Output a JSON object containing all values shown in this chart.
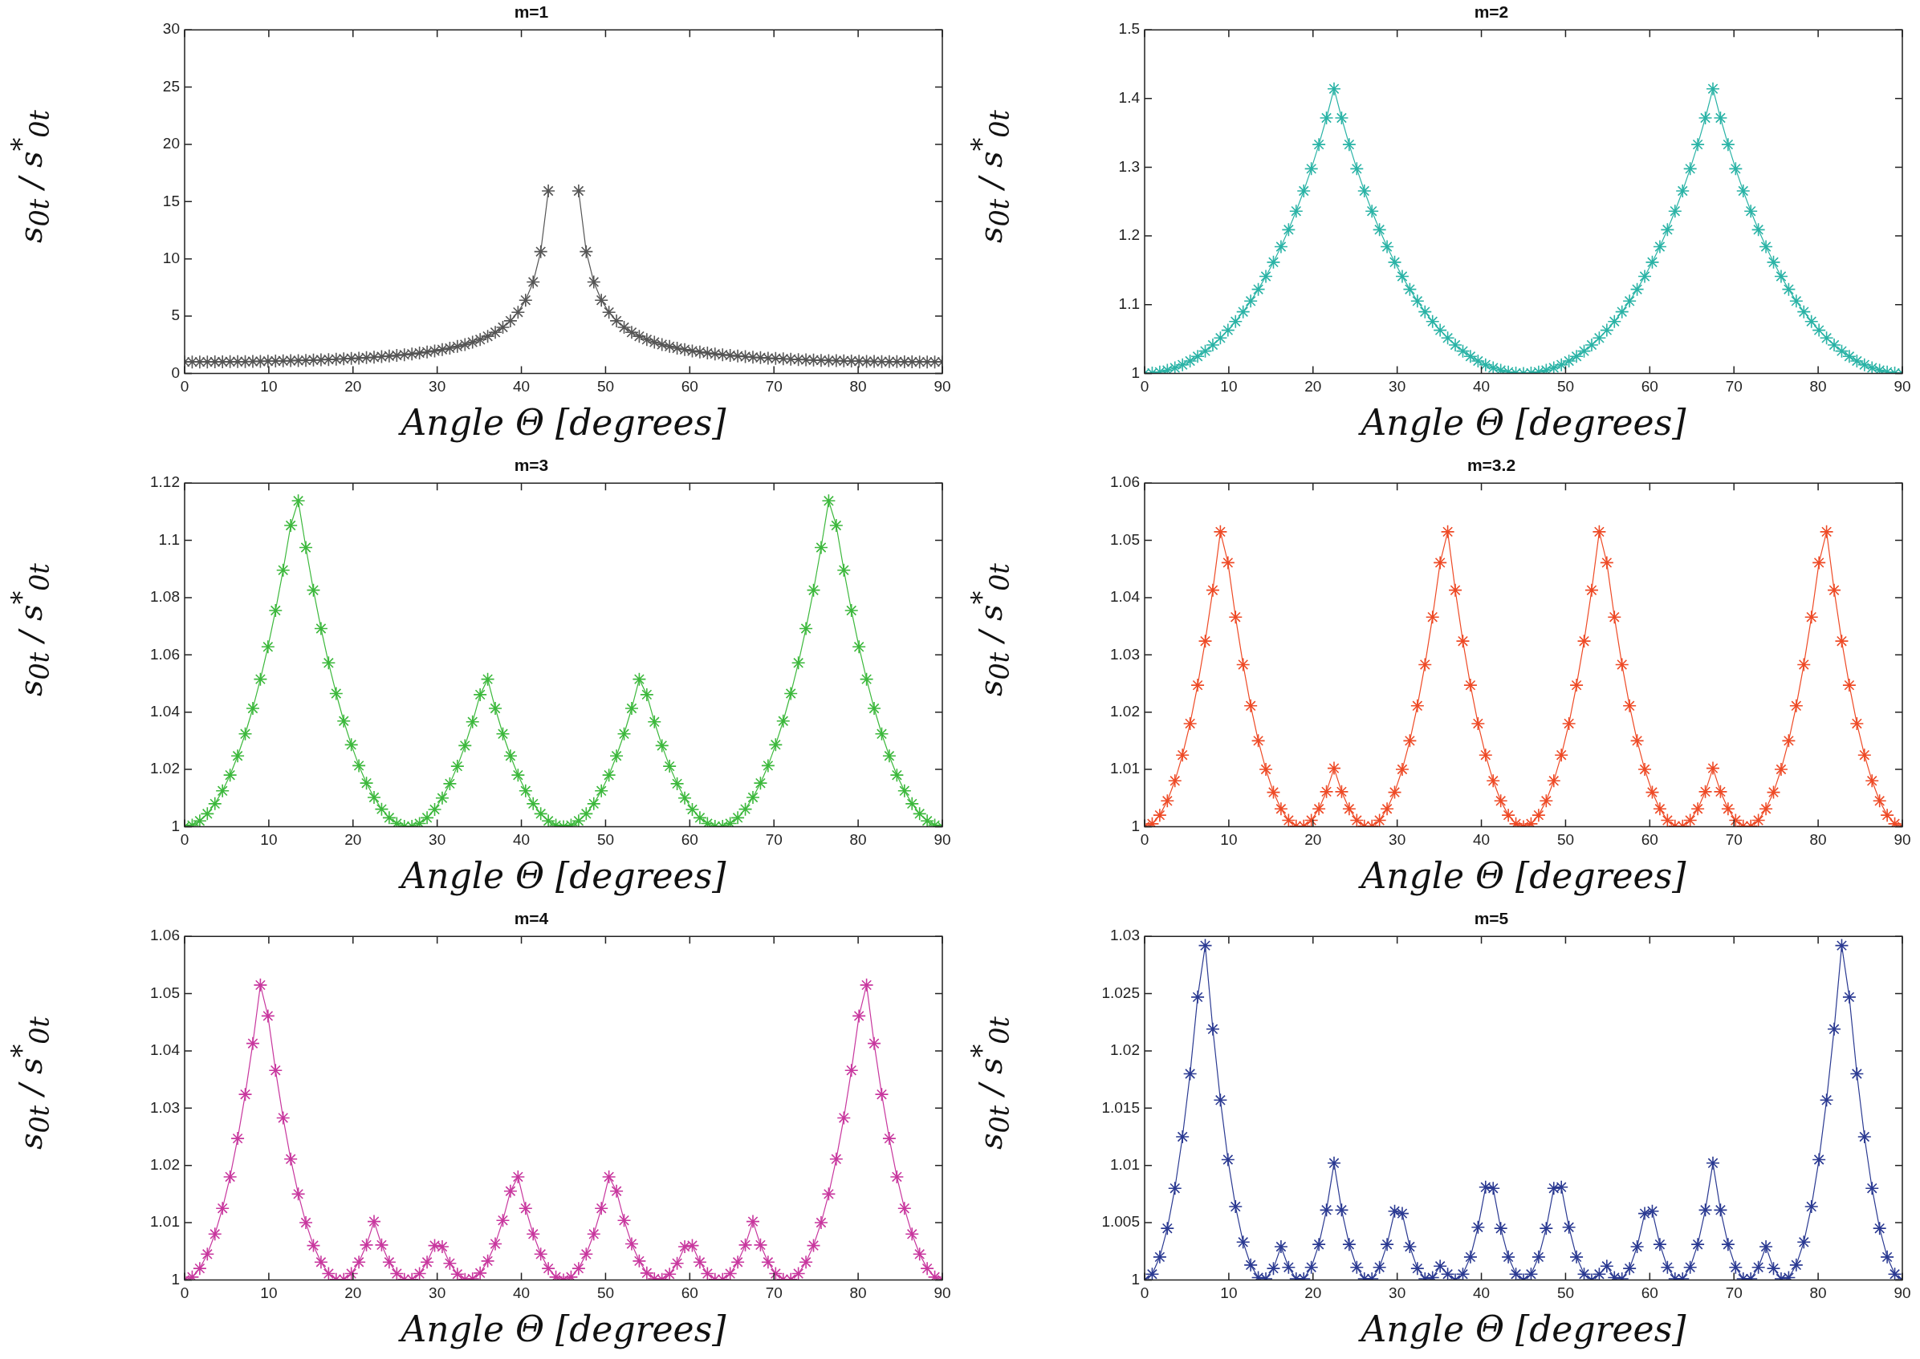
{
  "chart_data": [
    {
      "type": "line",
      "title": "m=1",
      "xlabel": "Angle Θ [degrees]",
      "ylabel": "s$_{0t}$ / s$^{*}$$_{0t}$",
      "color": "#555555",
      "marker": "cross",
      "xlim": [
        0,
        90
      ],
      "ylim": [
        0,
        30
      ],
      "xticks": [
        0,
        10,
        20,
        30,
        40,
        50,
        60,
        70,
        80,
        90
      ],
      "yticks": [
        0,
        5,
        10,
        15,
        20,
        25,
        30
      ],
      "x": [
        0,
        0.9,
        1.8,
        2.7,
        3.6,
        4.5,
        5.4,
        6.3,
        7.2,
        8.1,
        9,
        9.9,
        10.8,
        11.7,
        12.6,
        13.5,
        14.4,
        15.3,
        16.2,
        17.1,
        18,
        18.9,
        19.8,
        20.7,
        21.6,
        22.5,
        23.4,
        24.3,
        25.2,
        26.1,
        27,
        27.9,
        28.8,
        29.7,
        30.6,
        31.5,
        32.4,
        33.3,
        34.2,
        35.1,
        36,
        36.9,
        37.8,
        38.7,
        39.6,
        40.5,
        41.4,
        42.3,
        43.2,
        44.1,
        45,
        45.9,
        46.8,
        47.7,
        48.6,
        49.5,
        50.4,
        51.3,
        52.2,
        53.1,
        54,
        54.9,
        55.8,
        56.7,
        57.6,
        58.5,
        59.4,
        60.3,
        61.2,
        62.1,
        63,
        63.9,
        64.8,
        65.7,
        66.6,
        67.5,
        68.4,
        69.3,
        70.2,
        71.1,
        72,
        72.9,
        73.8,
        74.7,
        75.6,
        76.5,
        77.4,
        78.3,
        79.2,
        80.1,
        81,
        81.9,
        82.8,
        83.7,
        84.6,
        85.5,
        86.4,
        87.3,
        88.2,
        89.1,
        90
      ],
      "values": [
        1,
        1,
        1,
        1,
        1.01,
        1.01,
        1.02,
        1.02,
        1.03,
        1.04,
        1.05,
        1.06,
        1.08,
        1.09,
        1.11,
        1.12,
        1.14,
        1.16,
        1.18,
        1.21,
        1.24,
        1.27,
        1.3,
        1.33,
        1.37,
        1.41,
        1.46,
        1.51,
        1.57,
        1.63,
        1.7,
        1.78,
        1.87,
        1.96,
        2.08,
        2.2,
        2.35,
        2.52,
        2.72,
        2.95,
        3.24,
        3.58,
        4.02,
        4.59,
        5.34,
        6.39,
        7.98,
        10.63,
        15.93,
        null,
        null,
        null,
        15.93,
        10.63,
        7.98,
        6.39,
        5.34,
        4.59,
        4.02,
        3.58,
        3.24,
        2.95,
        2.72,
        2.52,
        2.35,
        2.2,
        2.08,
        1.96,
        1.87,
        1.78,
        1.7,
        1.63,
        1.57,
        1.51,
        1.46,
        1.41,
        1.37,
        1.33,
        1.3,
        1.27,
        1.24,
        1.21,
        1.18,
        1.16,
        1.14,
        1.12,
        1.11,
        1.09,
        1.08,
        1.06,
        1.05,
        1.04,
        1.03,
        1.02,
        1.02,
        1.01,
        1.01,
        1,
        1,
        1,
        1
      ]
    },
    {
      "type": "line",
      "title": "m=2",
      "xlabel": "Angle Θ [degrees]",
      "ylabel": "s$_{0t}$ / s$^{*}$$_{0t}$",
      "color": "#2ab3a6",
      "marker": "cross",
      "xlim": [
        0,
        90
      ],
      "ylim": [
        1,
        1.5
      ],
      "xticks": [
        0,
        10,
        20,
        30,
        40,
        50,
        60,
        70,
        80,
        90
      ],
      "yticks": [
        1,
        1.1,
        1.2,
        1.3,
        1.4,
        1.5
      ],
      "x": [
        0,
        0.9,
        1.8,
        2.7,
        3.6,
        4.5,
        5.4,
        6.3,
        7.2,
        8.1,
        9,
        9.9,
        10.8,
        11.7,
        12.6,
        13.5,
        14.4,
        15.3,
        16.2,
        17.1,
        18,
        18.9,
        19.8,
        20.7,
        21.6,
        22.5,
        23.4,
        24.3,
        25.2,
        26.1,
        27,
        27.9,
        28.8,
        29.7,
        30.6,
        31.5,
        32.4,
        33.3,
        34.2,
        35.1,
        36,
        36.9,
        37.8,
        38.7,
        39.6,
        40.5,
        41.4,
        42.3,
        43.2,
        44.1,
        45,
        45.9,
        46.8,
        47.7,
        48.6,
        49.5,
        50.4,
        51.3,
        52.2,
        53.1,
        54,
        54.9,
        55.8,
        56.7,
        57.6,
        58.5,
        59.4,
        60.3,
        61.2,
        62.1,
        63,
        63.9,
        64.8,
        65.7,
        66.6,
        67.5,
        68.4,
        69.3,
        70.2,
        71.1,
        72,
        72.9,
        73.8,
        74.7,
        75.6,
        76.5,
        77.4,
        78.3,
        79.2,
        80.1,
        81,
        81.9,
        82.8,
        83.7,
        84.6,
        85.5,
        86.4,
        87.3,
        88.2,
        89.1,
        90
      ],
      "values": [
        1,
        1.0005,
        1.002,
        1.0045,
        1.008,
        1.0125,
        1.018,
        1.0247,
        1.0324,
        1.0413,
        1.0515,
        1.0628,
        1.0755,
        1.0896,
        1.1052,
        1.1223,
        1.1412,
        1.1618,
        1.1844,
        1.2091,
        1.2361,
        1.2655,
        1.2978,
        1.3331,
        1.3718,
        1.4142,
        1.3718,
        1.3331,
        1.2978,
        1.2655,
        1.2361,
        1.2091,
        1.1844,
        1.1618,
        1.1412,
        1.1223,
        1.1052,
        1.0896,
        1.0755,
        1.0628,
        1.0515,
        1.0413,
        1.0324,
        1.0247,
        1.018,
        1.0125,
        1.008,
        1.0045,
        1.002,
        1.0005,
        1,
        1.0005,
        1.002,
        1.0045,
        1.008,
        1.0125,
        1.018,
        1.0247,
        1.0324,
        1.0413,
        1.0515,
        1.0628,
        1.0755,
        1.0896,
        1.1052,
        1.1223,
        1.1412,
        1.1618,
        1.1844,
        1.2091,
        1.2361,
        1.2655,
        1.2978,
        1.3331,
        1.3718,
        1.4142,
        1.3718,
        1.3331,
        1.2978,
        1.2655,
        1.2361,
        1.2091,
        1.1844,
        1.1618,
        1.1412,
        1.1223,
        1.1052,
        1.0896,
        1.0755,
        1.0628,
        1.0515,
        1.0413,
        1.0324,
        1.0247,
        1.018,
        1.0125,
        1.008,
        1.0045,
        1.002,
        1.0005,
        1
      ]
    },
    {
      "type": "line",
      "title": "m=3",
      "xlabel": "Angle Θ [degrees]",
      "ylabel": "s$_{0t}$ / s$^{*}$$_{0t}$",
      "color": "#3cb83c",
      "marker": "cross",
      "xlim": [
        0,
        90
      ],
      "ylim": [
        1,
        1.12
      ],
      "xticks": [
        0,
        10,
        20,
        30,
        40,
        50,
        60,
        70,
        80,
        90
      ],
      "yticks": [
        1,
        1.02,
        1.04,
        1.06,
        1.08,
        1.1,
        1.12
      ],
      "x": [
        0,
        0.9,
        1.8,
        2.7,
        3.6,
        4.5,
        5.4,
        6.3,
        7.2,
        8.1,
        9,
        9.9,
        10.8,
        11.7,
        12.6,
        13.5,
        14.4,
        15.3,
        16.2,
        17.1,
        18,
        18.9,
        19.8,
        20.7,
        21.6,
        22.5,
        23.4,
        24.3,
        25.2,
        26.1,
        27,
        27.9,
        28.8,
        29.7,
        30.6,
        31.5,
        32.4,
        33.3,
        34.2,
        35.1,
        36,
        36.9,
        37.8,
        38.7,
        39.6,
        40.5,
        41.4,
        42.3,
        43.2,
        44.1,
        45,
        45.9,
        46.8,
        47.7,
        48.6,
        49.5,
        50.4,
        51.3,
        52.2,
        53.1,
        54,
        54.9,
        55.8,
        56.7,
        57.6,
        58.5,
        59.4,
        60.3,
        61.2,
        62.1,
        63,
        63.9,
        64.8,
        65.7,
        66.6,
        67.5,
        68.4,
        69.3,
        70.2,
        71.1,
        72,
        72.9,
        73.8,
        74.7,
        75.6,
        76.5,
        77.4,
        78.3,
        79.2,
        80.1,
        81,
        81.9,
        82.8,
        83.7,
        84.6,
        85.5,
        86.4,
        87.3,
        88.2,
        89.1,
        90
      ],
      "values": [
        1,
        1.0005,
        1.002,
        1.0045,
        1.008,
        1.0125,
        1.018,
        1.0247,
        1.0324,
        1.0413,
        1.0515,
        1.0628,
        1.0755,
        1.0896,
        1.1052,
        1.1138,
        1.0975,
        1.0826,
        1.0692,
        1.0572,
        1.0465,
        1.0369,
        1.0286,
        1.0213,
        1.0152,
        1.0102,
        1.0061,
        1.0031,
        1.0011,
        1.0001,
        1.0001,
        1.0011,
        1.0031,
        1.006,
        1.01,
        1.015,
        1.0211,
        1.0283,
        1.0366,
        1.0461,
        1.0515,
        1.0413,
        1.0324,
        1.0247,
        1.018,
        1.0125,
        1.008,
        1.0045,
        1.002,
        1.0005,
        1,
        1.0005,
        1.002,
        1.0045,
        1.008,
        1.0125,
        1.018,
        1.0247,
        1.0324,
        1.0413,
        1.0515,
        1.0461,
        1.0366,
        1.0283,
        1.0211,
        1.015,
        1.01,
        1.006,
        1.0031,
        1.0011,
        1.0001,
        1.0001,
        1.0011,
        1.0031,
        1.0061,
        1.0102,
        1.0152,
        1.0213,
        1.0286,
        1.0369,
        1.0465,
        1.0572,
        1.0692,
        1.0826,
        1.0975,
        1.1138,
        1.1052,
        1.0896,
        1.0755,
        1.0628,
        1.0515,
        1.0413,
        1.0324,
        1.0247,
        1.018,
        1.0125,
        1.008,
        1.0045,
        1.002,
        1.0005,
        1
      ]
    },
    {
      "type": "line",
      "title": "m=3.2",
      "xlabel": "Angle Θ [degrees]",
      "ylabel": "s$_{0t}$ / s$^{*}$$_{0t}$",
      "color": "#ee4a26",
      "marker": "cross",
      "xlim": [
        0,
        90
      ],
      "ylim": [
        1,
        1.06
      ],
      "xticks": [
        0,
        10,
        20,
        30,
        40,
        50,
        60,
        70,
        80,
        90
      ],
      "yticks": [
        1,
        1.01,
        1.02,
        1.03,
        1.04,
        1.05,
        1.06
      ],
      "x": [
        0,
        0.9,
        1.8,
        2.7,
        3.6,
        4.5,
        5.4,
        6.3,
        7.2,
        8.1,
        9,
        9.9,
        10.8,
        11.7,
        12.6,
        13.5,
        14.4,
        15.3,
        16.2,
        17.1,
        18,
        18.9,
        19.8,
        20.7,
        21.6,
        22.5,
        23.4,
        24.3,
        25.2,
        26.1,
        27,
        27.9,
        28.8,
        29.7,
        30.6,
        31.5,
        32.4,
        33.3,
        34.2,
        35.1,
        36,
        36.9,
        37.8,
        38.7,
        39.6,
        40.5,
        41.4,
        42.3,
        43.2,
        44.1,
        45,
        45.9,
        46.8,
        47.7,
        48.6,
        49.5,
        50.4,
        51.3,
        52.2,
        53.1,
        54,
        54.9,
        55.8,
        56.7,
        57.6,
        58.5,
        59.4,
        60.3,
        61.2,
        62.1,
        63,
        63.9,
        64.8,
        65.7,
        66.6,
        67.5,
        68.4,
        69.3,
        70.2,
        71.1,
        72,
        72.9,
        73.8,
        74.7,
        75.6,
        76.5,
        77.4,
        78.3,
        79.2,
        80.1,
        81,
        81.9,
        82.8,
        83.7,
        84.6,
        85.5,
        86.4,
        87.3,
        88.2,
        89.1,
        90
      ],
      "values": [
        1,
        1.0005,
        1.002,
        1.0045,
        1.008,
        1.0125,
        1.018,
        1.0247,
        1.0324,
        1.0413,
        1.0515,
        1.0461,
        1.0366,
        1.0283,
        1.0211,
        1.015,
        1.01,
        1.006,
        1.0031,
        1.0011,
        1.0001,
        1.0001,
        1.0011,
        1.0031,
        1.0061,
        1.0102,
        1.0061,
        1.0031,
        1.0011,
        1.0001,
        1.0001,
        1.0011,
        1.0031,
        1.006,
        1.01,
        1.015,
        1.0211,
        1.0283,
        1.0366,
        1.0461,
        1.0515,
        1.0413,
        1.0324,
        1.0247,
        1.018,
        1.0125,
        1.008,
        1.0045,
        1.002,
        1.0005,
        1,
        1.0005,
        1.002,
        1.0045,
        1.008,
        1.0125,
        1.018,
        1.0247,
        1.0324,
        1.0413,
        1.0515,
        1.0461,
        1.0366,
        1.0283,
        1.0211,
        1.015,
        1.01,
        1.006,
        1.0031,
        1.0011,
        1.0001,
        1.0001,
        1.0011,
        1.0031,
        1.0061,
        1.0102,
        1.0061,
        1.0031,
        1.0011,
        1.0001,
        1.0001,
        1.0011,
        1.0031,
        1.006,
        1.01,
        1.015,
        1.0211,
        1.0283,
        1.0366,
        1.0461,
        1.0515,
        1.0413,
        1.0324,
        1.0247,
        1.018,
        1.0125,
        1.008,
        1.0045,
        1.002,
        1.0005,
        1
      ]
    },
    {
      "type": "line",
      "title": "m=4",
      "xlabel": "Angle Θ [degrees]",
      "ylabel": "s$_{0t}$ / s$^{*}$$_{0t}$",
      "color": "#c8379e",
      "marker": "cross",
      "xlim": [
        0,
        90
      ],
      "ylim": [
        1,
        1.06
      ],
      "xticks": [
        0,
        10,
        20,
        30,
        40,
        50,
        60,
        70,
        80,
        90
      ],
      "yticks": [
        1,
        1.01,
        1.02,
        1.03,
        1.04,
        1.05,
        1.06
      ],
      "x": [
        0,
        0.9,
        1.8,
        2.7,
        3.6,
        4.5,
        5.4,
        6.3,
        7.2,
        8.1,
        9,
        9.9,
        10.8,
        11.7,
        12.6,
        13.5,
        14.4,
        15.3,
        16.2,
        17.1,
        18,
        18.9,
        19.8,
        20.7,
        21.6,
        22.5,
        23.4,
        24.3,
        25.2,
        26.1,
        27,
        27.9,
        28.8,
        29.7,
        30.6,
        31.5,
        32.4,
        33.3,
        34.2,
        35.1,
        36,
        36.9,
        37.8,
        38.7,
        39.6,
        40.5,
        41.4,
        42.3,
        43.2,
        44.1,
        45,
        45.9,
        46.8,
        47.7,
        48.6,
        49.5,
        50.4,
        51.3,
        52.2,
        53.1,
        54,
        54.9,
        55.8,
        56.7,
        57.6,
        58.5,
        59.4,
        60.3,
        61.2,
        62.1,
        63,
        63.9,
        64.8,
        65.7,
        66.6,
        67.5,
        68.4,
        69.3,
        70.2,
        71.1,
        72,
        72.9,
        73.8,
        74.7,
        75.6,
        76.5,
        77.4,
        78.3,
        79.2,
        80.1,
        81,
        81.9,
        82.8,
        83.7,
        84.6,
        85.5,
        86.4,
        87.3,
        88.2,
        89.1,
        90
      ],
      "values": [
        1,
        1.0005,
        1.002,
        1.0045,
        1.008,
        1.0125,
        1.018,
        1.0247,
        1.0324,
        1.0413,
        1.0515,
        1.0461,
        1.0366,
        1.0283,
        1.0211,
        1.015,
        1.01,
        1.006,
        1.0031,
        1.0011,
        1.0001,
        1.0001,
        1.0011,
        1.0031,
        1.0061,
        1.0102,
        1.0061,
        1.0031,
        1.0011,
        1.0001,
        1.0001,
        1.0011,
        1.0031,
        1.006,
        1.0058,
        1.0029,
        1.001,
        1.0001,
        1.0002,
        1.0012,
        1.0033,
        1.0063,
        1.0104,
        1.0155,
        1.018,
        1.0125,
        1.008,
        1.0045,
        1.002,
        1.0005,
        1,
        1.0005,
        1.002,
        1.0045,
        1.008,
        1.0125,
        1.018,
        1.0155,
        1.0104,
        1.0063,
        1.0033,
        1.0012,
        1.0002,
        1.0001,
        1.001,
        1.0029,
        1.0058,
        1.006,
        1.0031,
        1.0011,
        1.0001,
        1.0001,
        1.0011,
        1.0031,
        1.0061,
        1.0102,
        1.0061,
        1.0031,
        1.0011,
        1.0001,
        1.0001,
        1.0011,
        1.0031,
        1.006,
        1.01,
        1.015,
        1.0211,
        1.0283,
        1.0366,
        1.0461,
        1.0515,
        1.0413,
        1.0324,
        1.0247,
        1.018,
        1.0125,
        1.008,
        1.0045,
        1.002,
        1.0005,
        1
      ]
    },
    {
      "type": "line",
      "title": "m=5",
      "xlabel": "Angle Θ [degrees]",
      "ylabel": "s$_{0t}$ / s$^{*}$$_{0t}$",
      "color": "#2b3a92",
      "marker": "cross",
      "xlim": [
        0,
        90
      ],
      "ylim": [
        1,
        1.03
      ],
      "xticks": [
        0,
        10,
        20,
        30,
        40,
        50,
        60,
        70,
        80,
        90
      ],
      "yticks": [
        1,
        1.005,
        1.01,
        1.015,
        1.02,
        1.025,
        1.03
      ],
      "x": [
        0,
        0.9,
        1.8,
        2.7,
        3.6,
        4.5,
        5.4,
        6.3,
        7.2,
        8.1,
        9,
        9.9,
        10.8,
        11.7,
        12.6,
        13.5,
        14.4,
        15.3,
        16.2,
        17.1,
        18,
        18.9,
        19.8,
        20.7,
        21.6,
        22.5,
        23.4,
        24.3,
        25.2,
        26.1,
        27,
        27.9,
        28.8,
        29.7,
        30.6,
        31.5,
        32.4,
        33.3,
        34.2,
        35.1,
        36,
        36.9,
        37.8,
        38.7,
        39.6,
        40.5,
        41.4,
        42.3,
        43.2,
        44.1,
        45,
        45.9,
        46.8,
        47.7,
        48.6,
        49.5,
        50.4,
        51.3,
        52.2,
        53.1,
        54,
        54.9,
        55.8,
        56.7,
        57.6,
        58.5,
        59.4,
        60.3,
        61.2,
        62.1,
        63,
        63.9,
        64.8,
        65.7,
        66.6,
        67.5,
        68.4,
        69.3,
        70.2,
        71.1,
        72,
        72.9,
        73.8,
        74.7,
        75.6,
        76.5,
        77.4,
        78.3,
        79.2,
        80.1,
        81,
        81.9,
        82.8,
        83.7,
        84.6,
        85.5,
        86.4,
        87.3,
        88.2,
        89.1,
        90
      ],
      "values": [
        1,
        1.0005,
        1.002,
        1.0045,
        1.008,
        1.0125,
        1.018,
        1.0247,
        1.0292,
        1.0219,
        1.0157,
        1.0105,
        1.0064,
        1.0033,
        1.0013,
        1.0002,
        1.0001,
        1.001,
        1.0029,
        1.0011,
        1.0001,
        1.0001,
        1.0011,
        1.0031,
        1.0061,
        1.0102,
        1.0061,
        1.0031,
        1.0011,
        1.0001,
        1.0001,
        1.0011,
        1.0031,
        1.006,
        1.0058,
        1.0029,
        1.001,
        1.0001,
        1.0002,
        1.0012,
        1.0005,
        1,
        1.0005,
        1.002,
        1.0046,
        1.0081,
        1.008,
        1.0045,
        1.002,
        1.0005,
        1,
        1.0005,
        1.002,
        1.0045,
        1.008,
        1.0081,
        1.0046,
        1.002,
        1.0005,
        1,
        1.0005,
        1.0012,
        1.0002,
        1.0001,
        1.001,
        1.0029,
        1.0058,
        1.006,
        1.0031,
        1.0011,
        1.0001,
        1.0001,
        1.0011,
        1.0031,
        1.0061,
        1.0102,
        1.0061,
        1.0031,
        1.0011,
        1.0001,
        1.0001,
        1.0011,
        1.0029,
        1.001,
        1.0001,
        1.0002,
        1.0013,
        1.0033,
        1.0064,
        1.0105,
        1.0157,
        1.0219,
        1.0292,
        1.0247,
        1.018,
        1.0125,
        1.008,
        1.0045,
        1.002,
        1.0005,
        1
      ]
    }
  ]
}
